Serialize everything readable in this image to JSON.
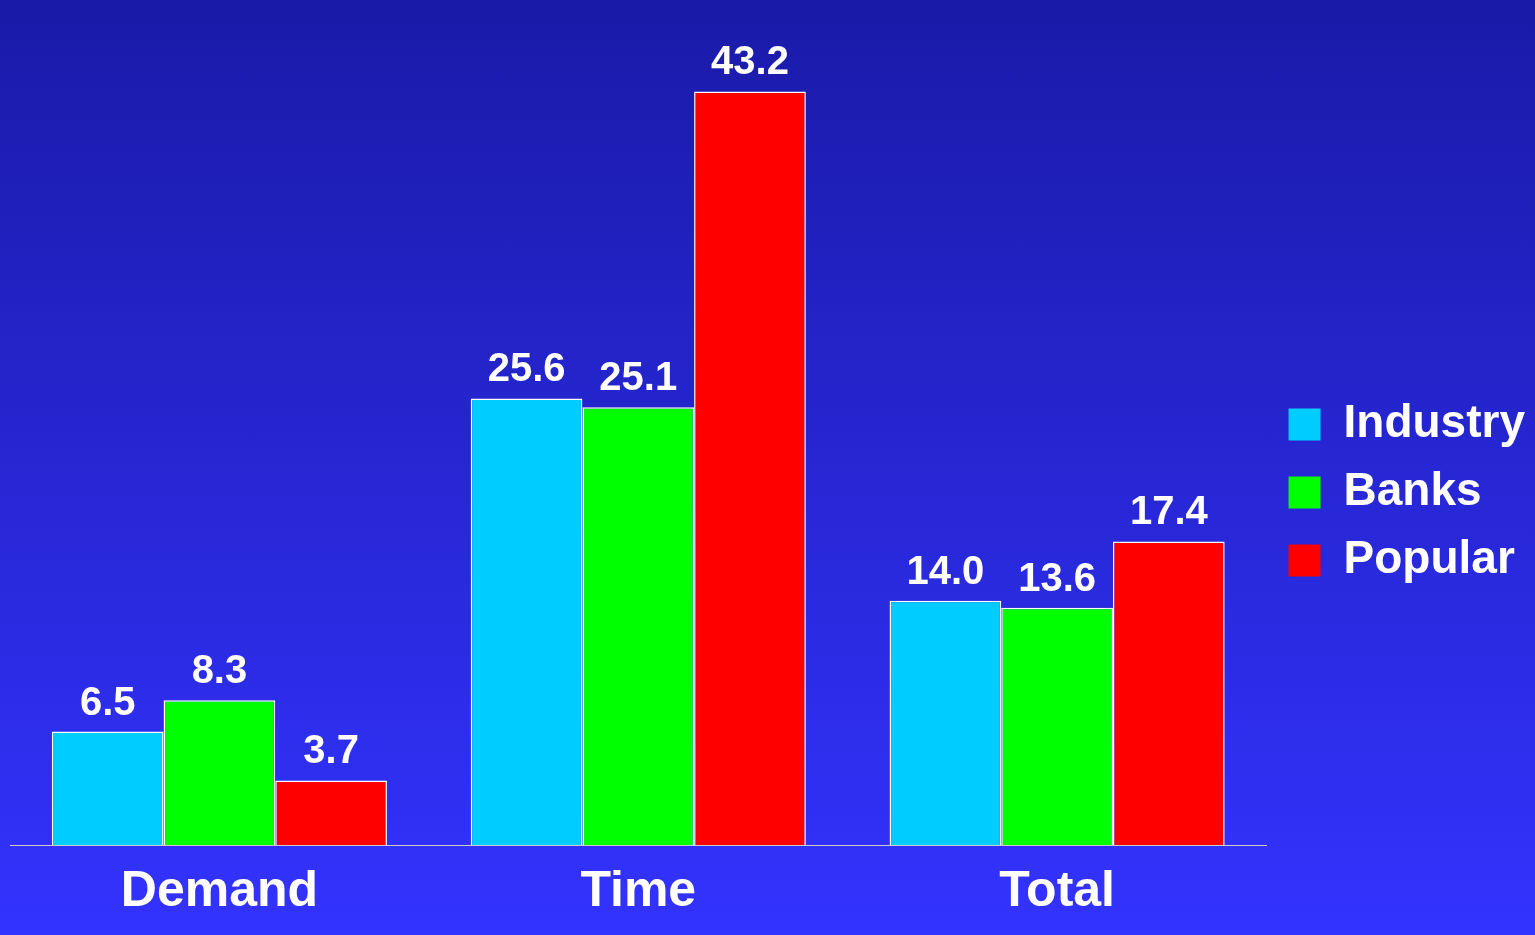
{
  "chart_data": {
    "type": "bar",
    "categories": [
      "Demand",
      "Time",
      "Total"
    ],
    "series": [
      {
        "name": "Industry",
        "color": "#00ccff",
        "values": [
          6.5,
          25.6,
          14.0
        ],
        "value_labels": [
          "6.5",
          "25.6",
          "14.0"
        ]
      },
      {
        "name": "Banks",
        "color": "#00ff00",
        "values": [
          8.3,
          25.1,
          13.6
        ],
        "value_labels": [
          "8.3",
          "25.1",
          "13.6"
        ]
      },
      {
        "name": "Popular",
        "color": "#ff0000",
        "values": [
          3.7,
          43.2,
          17.4
        ],
        "value_labels": [
          "3.7",
          "43.2",
          "17.4"
        ]
      }
    ],
    "legend": "right",
    "grid": false,
    "tick_labels": "x"
  }
}
